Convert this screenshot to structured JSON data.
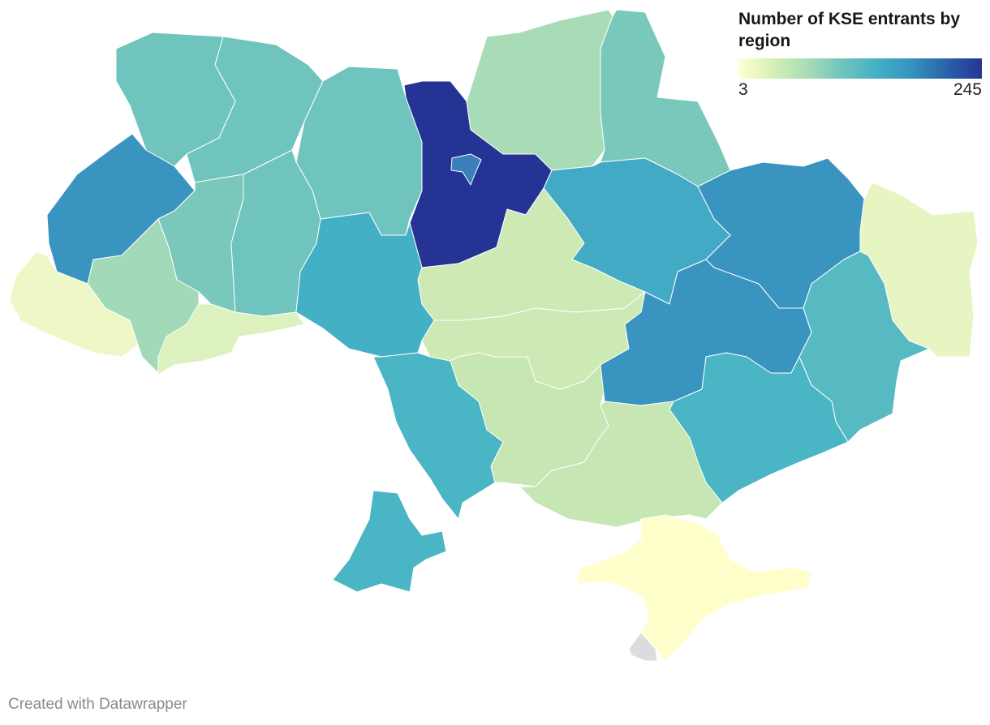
{
  "legend": {
    "title": "Number of KSE entrants by region",
    "min_label": "3",
    "max_label": "245",
    "colors": [
      "#ffffd4",
      "#d6efb5",
      "#a8dcb7",
      "#6fc4bd",
      "#42b0c6",
      "#3691c0",
      "#2a62a8",
      "#253494"
    ]
  },
  "credit": "Created with Datawrapper",
  "map_colors": {
    "no_data": "#dcdcdc"
  },
  "regions": [
    {
      "id": "volyn",
      "color": "#6fc4bd"
    },
    {
      "id": "rivne",
      "color": "#6fc4bd"
    },
    {
      "id": "zhytomyr",
      "color": "#6fc4bd"
    },
    {
      "id": "kyiv-oblast",
      "color": "#253494"
    },
    {
      "id": "kyiv-city",
      "color": "#3a7fba"
    },
    {
      "id": "chernihiv",
      "color": "#a8dcb7"
    },
    {
      "id": "sumy",
      "color": "#7ac8bb"
    },
    {
      "id": "lviv",
      "color": "#3a94c0"
    },
    {
      "id": "ternopil",
      "color": "#7ac8bb"
    },
    {
      "id": "khmelnytskyi",
      "color": "#6fc4bd"
    },
    {
      "id": "vinnytsia",
      "color": "#44b0c6"
    },
    {
      "id": "cherkasy",
      "color": "#cde9b4"
    },
    {
      "id": "poltava",
      "color": "#42aac5"
    },
    {
      "id": "kharkiv",
      "color": "#3a94c0"
    },
    {
      "id": "luhansk",
      "color": "#e6f5c1"
    },
    {
      "id": "zakarpattia",
      "color": "#edf8c6"
    },
    {
      "id": "ivano-frankivsk",
      "color": "#a2d9b9"
    },
    {
      "id": "chernivtsi",
      "color": "#dcf1bd"
    },
    {
      "id": "odesa",
      "color": "#4ab5c4"
    },
    {
      "id": "kirovohrad",
      "color": "#cde9b4"
    },
    {
      "id": "mykolaiv",
      "color": "#c6e6b4"
    },
    {
      "id": "dnipropetrovsk",
      "color": "#3a94c0"
    },
    {
      "id": "donetsk",
      "color": "#57bac2"
    },
    {
      "id": "zaporizhzhia",
      "color": "#4ab5c4"
    },
    {
      "id": "kherson",
      "color": "#c6e6b4"
    },
    {
      "id": "crimea",
      "color": "#ffffcc"
    },
    {
      "id": "sevastopol",
      "color": "#dcdcdc"
    }
  ]
}
